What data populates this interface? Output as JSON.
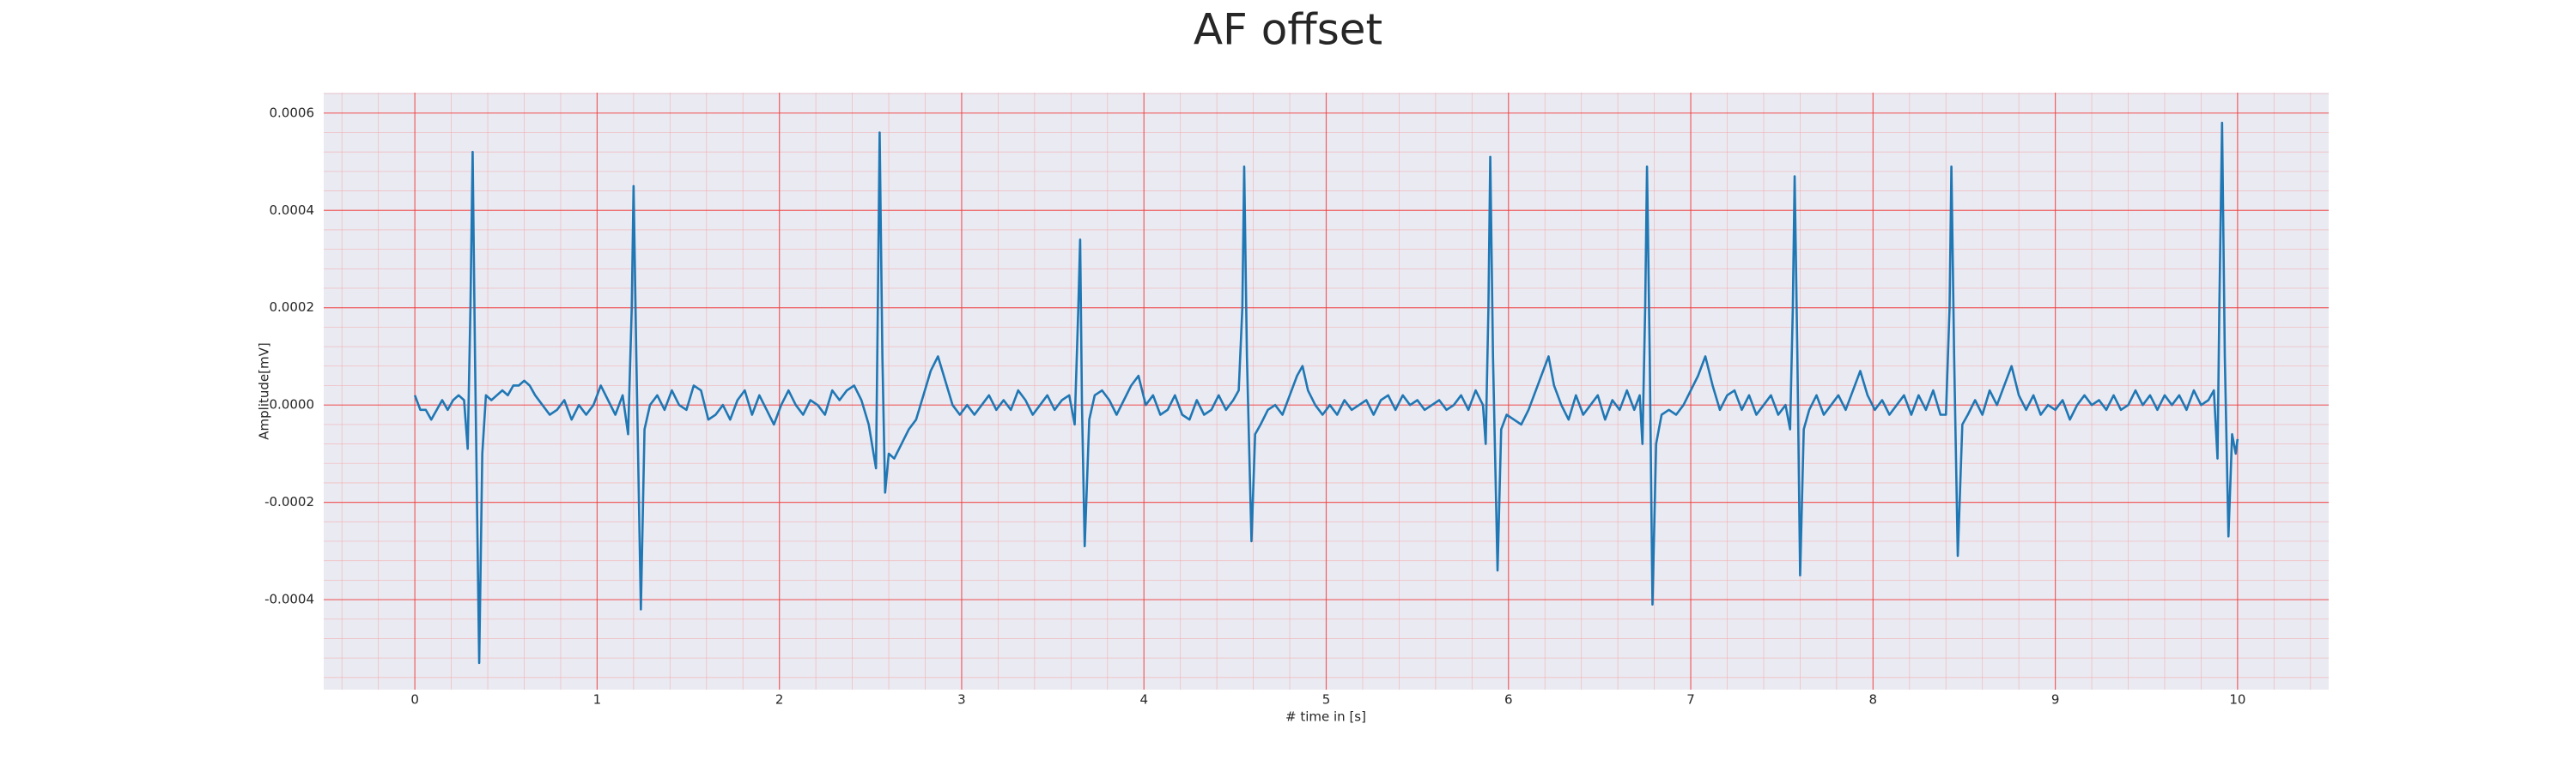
{
  "chart_data": {
    "type": "line",
    "title": "AF offset",
    "x_label": "# time in [s]",
    "y_label": "Amplitude[mV]",
    "color": "#1f77b4",
    "grid": true,
    "minor_grid": true,
    "xlim": [
      -0.5,
      10.5
    ],
    "xticks": [
      0,
      1,
      2,
      3,
      4,
      5,
      6,
      7,
      8,
      9,
      10
    ],
    "ylim": [
      -0.000585,
      0.000642
    ],
    "yticks": [
      {
        "value": -0.0004,
        "label": "-0.0004"
      },
      {
        "value": -0.0002,
        "label": "-0.0002"
      },
      {
        "value": 0,
        "label": "0.0000"
      },
      {
        "value": 0.0002,
        "label": "0.0002"
      },
      {
        "value": 0.0004,
        "label": "0.0004"
      },
      {
        "value": 0.0006,
        "label": "0.0006"
      }
    ],
    "x": [
      0.0,
      0.03,
      0.06,
      0.09,
      0.12,
      0.15,
      0.18,
      0.21,
      0.24,
      0.27,
      0.29,
      0.305,
      0.317,
      0.33,
      0.353,
      0.37,
      0.39,
      0.42,
      0.45,
      0.48,
      0.51,
      0.54,
      0.57,
      0.6,
      0.63,
      0.66,
      0.7,
      0.74,
      0.78,
      0.82,
      0.86,
      0.9,
      0.94,
      0.98,
      1.02,
      1.06,
      1.1,
      1.14,
      1.17,
      1.19,
      1.2,
      1.215,
      1.24,
      1.26,
      1.29,
      1.33,
      1.37,
      1.41,
      1.45,
      1.49,
      1.53,
      1.57,
      1.61,
      1.65,
      1.69,
      1.73,
      1.77,
      1.81,
      1.85,
      1.89,
      1.93,
      1.97,
      2.01,
      2.05,
      2.09,
      2.13,
      2.17,
      2.21,
      2.25,
      2.29,
      2.33,
      2.37,
      2.41,
      2.45,
      2.49,
      2.53,
      2.54,
      2.55,
      2.565,
      2.58,
      2.6,
      2.63,
      2.67,
      2.71,
      2.75,
      2.79,
      2.83,
      2.87,
      2.91,
      2.95,
      2.99,
      3.03,
      3.07,
      3.11,
      3.15,
      3.19,
      3.23,
      3.27,
      3.31,
      3.35,
      3.39,
      3.43,
      3.47,
      3.51,
      3.55,
      3.59,
      3.62,
      3.64,
      3.65,
      3.66,
      3.675,
      3.7,
      3.73,
      3.77,
      3.81,
      3.85,
      3.89,
      3.93,
      3.97,
      4.01,
      4.05,
      4.09,
      4.13,
      4.17,
      4.21,
      4.25,
      4.29,
      4.33,
      4.37,
      4.41,
      4.45,
      4.49,
      4.52,
      4.54,
      4.55,
      4.565,
      4.59,
      4.61,
      4.64,
      4.68,
      4.72,
      4.76,
      4.8,
      4.84,
      4.87,
      4.9,
      4.94,
      4.98,
      5.02,
      5.06,
      5.1,
      5.14,
      5.18,
      5.22,
      5.26,
      5.3,
      5.34,
      5.38,
      5.42,
      5.46,
      5.5,
      5.54,
      5.58,
      5.62,
      5.66,
      5.7,
      5.74,
      5.78,
      5.82,
      5.86,
      5.875,
      5.89,
      5.9,
      5.915,
      5.94,
      5.96,
      5.99,
      6.03,
      6.07,
      6.11,
      6.15,
      6.19,
      6.22,
      6.25,
      6.29,
      6.33,
      6.37,
      6.41,
      6.45,
      6.49,
      6.53,
      6.57,
      6.61,
      6.65,
      6.69,
      6.72,
      6.735,
      6.75,
      6.76,
      6.775,
      6.79,
      6.81,
      6.84,
      6.88,
      6.92,
      6.96,
      7.0,
      7.04,
      7.08,
      7.12,
      7.16,
      7.2,
      7.24,
      7.28,
      7.32,
      7.36,
      7.4,
      7.44,
      7.48,
      7.52,
      7.545,
      7.56,
      7.57,
      7.585,
      7.6,
      7.62,
      7.65,
      7.69,
      7.73,
      7.77,
      7.81,
      7.85,
      7.89,
      7.93,
      7.97,
      8.01,
      8.05,
      8.09,
      8.13,
      8.17,
      8.21,
      8.25,
      8.29,
      8.33,
      8.37,
      8.4,
      8.42,
      8.43,
      8.445,
      8.465,
      8.49,
      8.52,
      8.56,
      8.6,
      8.64,
      8.68,
      8.72,
      8.76,
      8.8,
      8.84,
      8.88,
      8.92,
      8.96,
      9.0,
      9.04,
      9.08,
      9.12,
      9.16,
      9.2,
      9.24,
      9.28,
      9.32,
      9.36,
      9.4,
      9.44,
      9.48,
      9.52,
      9.56,
      9.6,
      9.64,
      9.68,
      9.72,
      9.76,
      9.8,
      9.84,
      9.87,
      9.89,
      9.9,
      9.915,
      9.93,
      9.95,
      9.97,
      9.99,
      10.0
    ],
    "values": [
      2e-05,
      -1e-05,
      -1e-05,
      -3e-05,
      -1e-05,
      1e-05,
      -1e-05,
      1e-05,
      2e-05,
      1e-05,
      -9e-05,
      0.0002,
      0.00052,
      0.0001,
      -0.00053,
      -0.0001,
      2e-05,
      1e-05,
      2e-05,
      3e-05,
      2e-05,
      4e-05,
      4e-05,
      5e-05,
      4e-05,
      2e-05,
      0,
      -2e-05,
      -1e-05,
      1e-05,
      -3e-05,
      0,
      -2e-05,
      0,
      4e-05,
      1e-05,
      -2e-05,
      2e-05,
      -6e-05,
      0.0002,
      0.00045,
      0.0001,
      -0.00042,
      -5e-05,
      0,
      2e-05,
      -1e-05,
      3e-05,
      0,
      -1e-05,
      4e-05,
      3e-05,
      -3e-05,
      -2e-05,
      0,
      -3e-05,
      1e-05,
      3e-05,
      -2e-05,
      2e-05,
      -1e-05,
      -4e-05,
      0,
      3e-05,
      0,
      -2e-05,
      1e-05,
      0,
      -2e-05,
      3e-05,
      1e-05,
      3e-05,
      4e-05,
      1e-05,
      -4e-05,
      -0.00013,
      0.0002,
      0.00056,
      0.0001,
      -0.00018,
      -0.0001,
      -0.00011,
      -8e-05,
      -5e-05,
      -3e-05,
      2e-05,
      7e-05,
      0.0001,
      5e-05,
      0,
      -2e-05,
      0,
      -2e-05,
      0,
      2e-05,
      -1e-05,
      1e-05,
      -1e-05,
      3e-05,
      1e-05,
      -2e-05,
      0,
      2e-05,
      -1e-05,
      1e-05,
      2e-05,
      -4e-05,
      0.0002,
      0.00034,
      0,
      -0.00029,
      -3e-05,
      2e-05,
      3e-05,
      1e-05,
      -2e-05,
      1e-05,
      4e-05,
      6e-05,
      0,
      2e-05,
      -2e-05,
      -1e-05,
      2e-05,
      -2e-05,
      -3e-05,
      1e-05,
      -2e-05,
      -1e-05,
      2e-05,
      -1e-05,
      1e-05,
      3e-05,
      0.0002,
      0.00049,
      0.0001,
      -0.00028,
      -6e-05,
      -4e-05,
      -1e-05,
      0,
      -2e-05,
      2e-05,
      6e-05,
      8e-05,
      3e-05,
      0,
      -2e-05,
      0,
      -2e-05,
      1e-05,
      -1e-05,
      0,
      1e-05,
      -2e-05,
      1e-05,
      2e-05,
      -1e-05,
      2e-05,
      0,
      1e-05,
      -1e-05,
      0,
      1e-05,
      -1e-05,
      0,
      2e-05,
      -1e-05,
      3e-05,
      0,
      -8e-05,
      0.0002,
      0.00051,
      0.0001,
      -0.00034,
      -5e-05,
      -2e-05,
      -3e-05,
      -4e-05,
      -1e-05,
      3e-05,
      7e-05,
      0.0001,
      4e-05,
      0,
      -3e-05,
      2e-05,
      -2e-05,
      0,
      2e-05,
      -3e-05,
      1e-05,
      -1e-05,
      3e-05,
      -1e-05,
      2e-05,
      -8e-05,
      0.0002,
      0.00049,
      0.0001,
      -0.00041,
      -8e-05,
      -2e-05,
      -1e-05,
      -2e-05,
      0,
      3e-05,
      6e-05,
      0.0001,
      4e-05,
      -1e-05,
      2e-05,
      3e-05,
      -1e-05,
      2e-05,
      -2e-05,
      0,
      2e-05,
      -2e-05,
      0,
      -5e-05,
      0.0002,
      0.00047,
      0.0001,
      -0.00035,
      -5e-05,
      -1e-05,
      2e-05,
      -2e-05,
      0,
      2e-05,
      -1e-05,
      3e-05,
      7e-05,
      2e-05,
      -1e-05,
      1e-05,
      -2e-05,
      0,
      2e-05,
      -2e-05,
      2e-05,
      -1e-05,
      3e-05,
      -2e-05,
      -2e-05,
      0.0002,
      0.00049,
      0.0001,
      -0.00031,
      -4e-05,
      -2e-05,
      1e-05,
      -2e-05,
      3e-05,
      0,
      4e-05,
      8e-05,
      2e-05,
      -1e-05,
      2e-05,
      -2e-05,
      0,
      -1e-05,
      1e-05,
      -3e-05,
      0,
      2e-05,
      0,
      1e-05,
      -1e-05,
      2e-05,
      -1e-05,
      0,
      3e-05,
      0,
      2e-05,
      -1e-05,
      2e-05,
      0,
      2e-05,
      -1e-05,
      3e-05,
      0,
      1e-05,
      3e-05,
      -0.00011,
      0.0002,
      0.00058,
      0.0001,
      -0.00027,
      -6e-05,
      -0.0001,
      -7e-05
    ]
  }
}
